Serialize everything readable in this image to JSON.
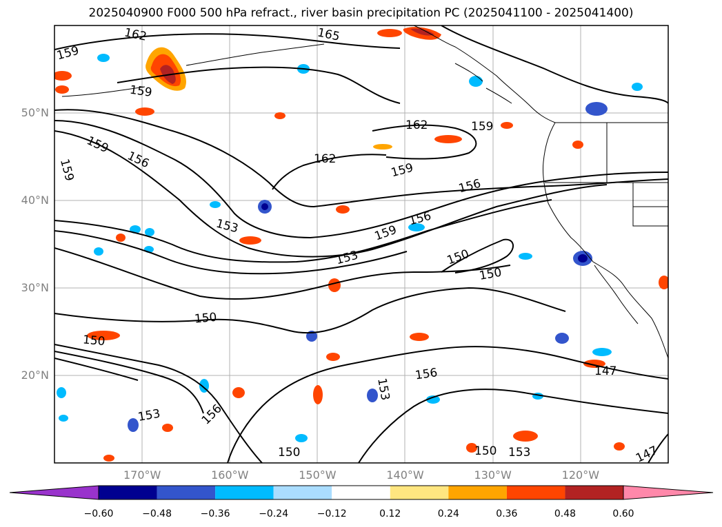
{
  "title": "2025040900 F000 500 hPa refract., river basin precipitation PC (2025041100 - 2025041400)",
  "lat_labels": [
    {
      "text": "50°N",
      "lat": 50
    },
    {
      "text": "40°N",
      "lat": 40
    },
    {
      "text": "30°N",
      "lat": 30
    },
    {
      "text": "20°N",
      "lat": 20
    }
  ],
  "lon_labels": [
    {
      "text": "170°W",
      "lon": -170
    },
    {
      "text": "160°W",
      "lon": -160
    },
    {
      "text": "150°W",
      "lon": -150
    },
    {
      "text": "140°W",
      "lon": -140
    },
    {
      "text": "130°W",
      "lon": -130
    },
    {
      "text": "120°W",
      "lon": -120
    }
  ],
  "map_extent": {
    "lon_min": -180,
    "lon_max": -110,
    "lat_min": 10,
    "lat_max": 60
  },
  "contour_labels": [
    "162",
    "165",
    "159",
    "159",
    "156",
    "159",
    "159",
    "162",
    "162",
    "159",
    "156",
    "156",
    "159",
    "153",
    "159",
    "153",
    "150",
    "150",
    "150",
    "150",
    "153",
    "156",
    "147",
    "150",
    "153",
    "156",
    "150",
    "153",
    "147"
  ],
  "colorbar": {
    "ticks": [
      "−0.60",
      "−0.48",
      "−0.36",
      "−0.24",
      "−0.12",
      "0.12",
      "0.24",
      "0.36",
      "0.48",
      "0.60"
    ],
    "colors": [
      "#9933cc",
      "#000090",
      "#3355cc",
      "#00bbff",
      "#aaddff",
      "#ffffff",
      "#ffe680",
      "#ffa500",
      "#ff4500",
      "#b22222",
      "#ff88aa"
    ]
  },
  "colors": {
    "contour": "#000000",
    "coast": "#000000",
    "grid": "#b0b0b0",
    "axis_label": "#808080"
  }
}
